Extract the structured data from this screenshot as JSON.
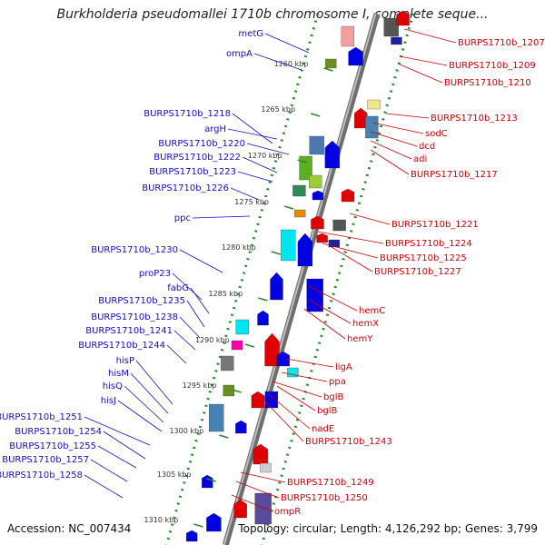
{
  "title": "Burkholderia pseudomallei 1710b chromosome I, complete seque...",
  "footer": {
    "accession": "Accession: NC_007434",
    "summary": "Topology: circular; Length: 4,126,292 bp; Genes: 3,799"
  },
  "kbp_ticks": [
    "1260 kbp",
    "1265 kbp",
    "1270 kbp",
    "1275 kbp",
    "1280 kbp",
    "1285 kbp",
    "1290 kbp",
    "1295 kbp",
    "1300 kbp",
    "1305 kbp",
    "1310 kbp"
  ],
  "left_labels": [
    "metG",
    "ompA",
    "BURPS1710b_1218",
    "argH",
    "BURPS1710b_1220",
    "BURPS1710b_1222",
    "BURPS1710b_1223",
    "BURPS1710b_1226",
    "ppc",
    "BURPS1710b_1230",
    "proP23",
    "fabG",
    "BURPS1710b_1235",
    "BURPS1710b_1238",
    "BURPS1710b_1241",
    "BURPS1710b_1244",
    "hisP",
    "hisM",
    "hisQ",
    "hisJ",
    "BURPS1710b_1251",
    "BURPS1710b_1254",
    "BURPS1710b_1255",
    "BURPS1710b_1257",
    "BURPS1710b_1258"
  ],
  "right_labels": [
    "BURPS1710b_1207",
    "BURPS1710b_1209",
    "BURPS1710b_1210",
    "BURPS1710b_1213",
    "sodC",
    "dcd",
    "adi",
    "BURPS1710b_1217",
    "BURPS1710b_1221",
    "BURPS1710b_1224",
    "BURPS1710b_1225",
    "BURPS1710b_1227",
    "hemC",
    "hemX",
    "hemY",
    "ligA",
    "ppa",
    "bglB",
    "bglB",
    "nadE",
    "BURPS1710b_1243",
    "BURPS1710b_1249",
    "BURPS1710b_1250",
    "ompR"
  ],
  "colors": {
    "left_label": "#1010c8",
    "right_label": "#d00000",
    "backbone": "#888888",
    "tick_green": "#2a8a2a",
    "forward_gene": "#0000e0",
    "reverse_gene": "#e00000"
  }
}
